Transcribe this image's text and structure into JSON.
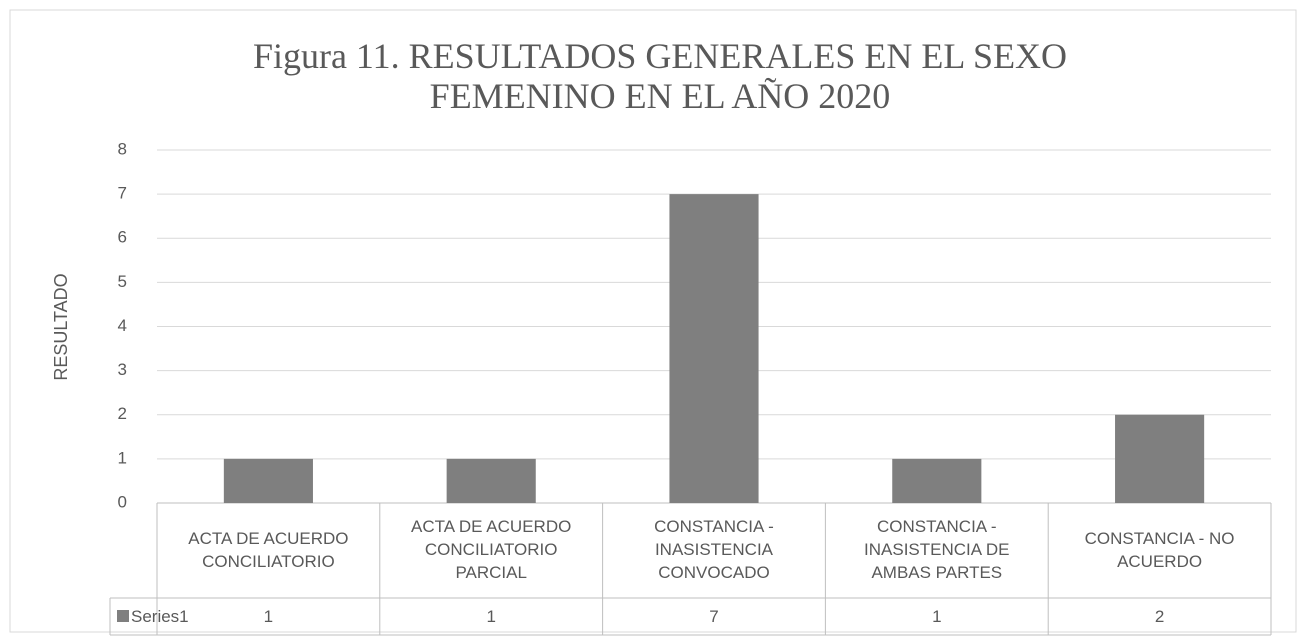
{
  "chart_data": {
    "type": "bar",
    "title": "Figura 11. RESULTADOS GENERALES EN EL SEXO FEMENINO EN EL AÑO 2020",
    "y_label": "RESULTADO",
    "categories": [
      "ACTA DE ACUERDO CONCILIATORIO",
      "ACTA DE ACUERDO CONCILIATORIO PARCIAL",
      "CONSTANCIA - INASISTENCIA CONVOCADO",
      "CONSTANCIA - INASISTENCIA DE AMBAS PARTES",
      "CONSTANCIA - NO ACUERDO"
    ],
    "series": [
      {
        "name": "Series1",
        "color": "#7f7f7f",
        "values": [
          1,
          1,
          7,
          1,
          2
        ]
      }
    ],
    "ylim": [
      0,
      8
    ],
    "yticks": [
      0,
      1,
      2,
      3,
      4,
      5,
      6,
      7,
      8
    ],
    "grid": true,
    "data_table": true
  }
}
